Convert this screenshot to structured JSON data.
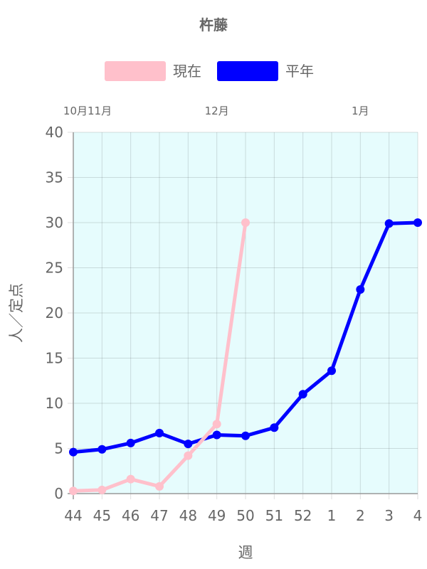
{
  "chart_data": {
    "type": "line",
    "title": "杵藤",
    "xlabel": "週",
    "ylabel": "人／定点",
    "categories": [
      "44",
      "45",
      "46",
      "47",
      "48",
      "49",
      "50",
      "51",
      "52",
      "1",
      "2",
      "3",
      "4"
    ],
    "month_labels": [
      {
        "label": "10月11月",
        "at": "44"
      },
      {
        "label": "12月",
        "at": "49"
      },
      {
        "label": "1月",
        "at": "2"
      }
    ],
    "ylim": [
      0,
      40
    ],
    "yticks": [
      0,
      5,
      10,
      15,
      20,
      25,
      30,
      35,
      40
    ],
    "grid": true,
    "legend_position": "top",
    "plot_background": "#e6fcfd",
    "series": [
      {
        "name": "現在",
        "color": "#ffc0cb",
        "values": [
          0.3,
          0.4,
          1.6,
          0.8,
          4.2,
          7.7,
          30,
          null,
          null,
          null,
          null,
          null,
          null
        ]
      },
      {
        "name": "平年",
        "color": "#0000ff",
        "values": [
          4.6,
          4.9,
          5.6,
          6.7,
          5.5,
          6.5,
          6.4,
          7.3,
          11.0,
          13.6,
          22.6,
          29.9,
          30.0
        ]
      }
    ]
  }
}
